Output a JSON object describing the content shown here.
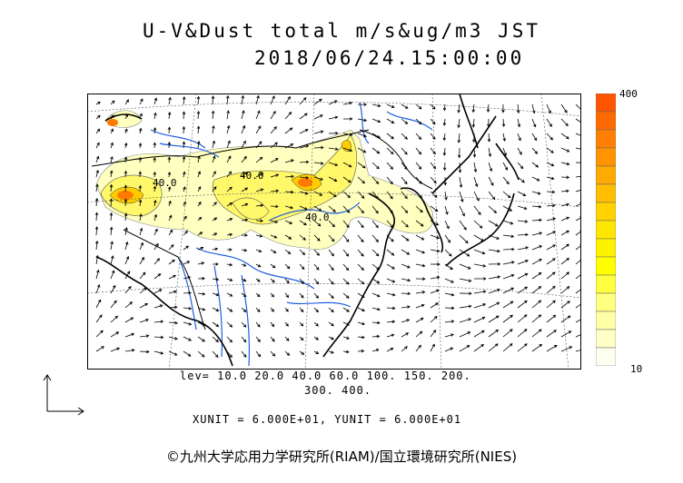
{
  "title_line1": "U-V&Dust total m/s&ug/m3 JST",
  "title_line2": "2018/06/24.15:00:00",
  "contour_labels": [
    "40.0",
    "40.0",
    "40.0"
  ],
  "colorbar": {
    "max_label": "400",
    "min_label": "10",
    "colors": [
      "#ff5500",
      "#ff6a00",
      "#ff8000",
      "#ff9400",
      "#ffaa00",
      "#ffbe00",
      "#ffd200",
      "#ffe600",
      "#fff200",
      "#ffff00",
      "#ffff40",
      "#ffff80",
      "#ffffa8",
      "#ffffc8",
      "#fffff0"
    ]
  },
  "levels_line1": "lev= 10.0 20.0 40.0 60.0 100. 150. 200.",
  "levels_line2": "300. 400.",
  "units_line": "XUNIT = 6.000E+01, YUNIT = 6.000E+01",
  "copyright": "©九州大学応用力学研究所(RIAM)/国立環境研究所(NIES)"
}
